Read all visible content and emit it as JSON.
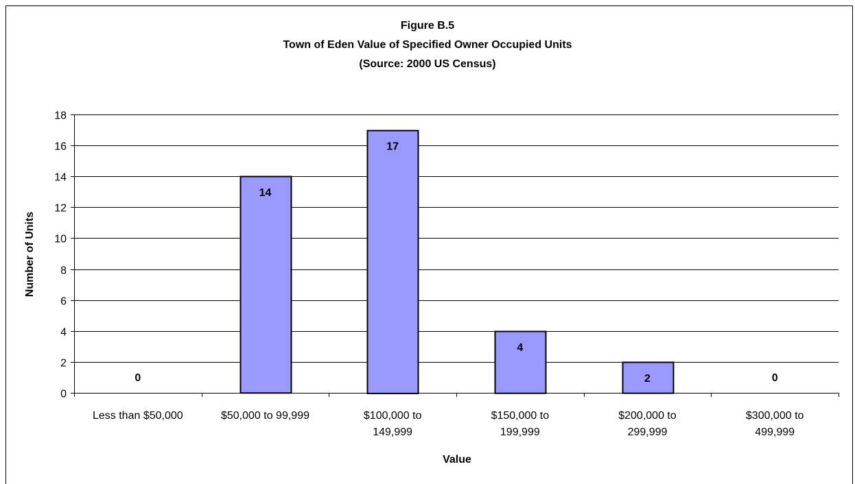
{
  "chart_data": {
    "type": "bar",
    "title": "Figure B.5",
    "subtitle_lines": [
      "Town of Eden Value of Specified Owner Occupied Units",
      "(Source:  2000 US Census)"
    ],
    "xlabel": "Value",
    "ylabel": "Number of Units",
    "ylim": [
      0,
      18
    ],
    "yticks": [
      "0",
      "2",
      "4",
      "6",
      "8",
      "10",
      "12",
      "14",
      "16",
      "18"
    ],
    "grid": true,
    "legend": "none",
    "bar_color": "#9999ff",
    "categories": [
      "Less than $50,000",
      "$50,000 to 99,999",
      "$100,000 to 149,999",
      "$150,000 to 199,999",
      "$200,000 to 299,999",
      "$300,000 to 499,999"
    ],
    "category_lines": [
      [
        "Less than $50,000"
      ],
      [
        "$50,000 to 99,999"
      ],
      [
        "$100,000 to",
        "149,999"
      ],
      [
        "$150,000 to",
        "199,999"
      ],
      [
        "$200,000 to",
        "299,999"
      ],
      [
        "$300,000 to",
        "499,999"
      ]
    ],
    "values": [
      0,
      14,
      17,
      4,
      2,
      0
    ],
    "data_labels": [
      "0",
      "14",
      "17",
      "4",
      "2",
      "0"
    ]
  }
}
